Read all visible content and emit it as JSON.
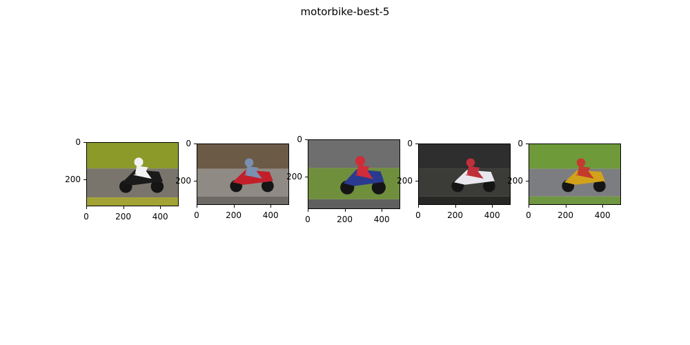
{
  "figure": {
    "title": "motorbike-best-5"
  },
  "panels": [
    {
      "image": "rider-black-white-sportbike-on-track",
      "x_ticks": [
        "0",
        "200",
        "400"
      ],
      "y_ticks": [
        "0",
        "200"
      ],
      "colors": {
        "top": "#8c9a2a",
        "mid": "#7a756c",
        "bottom": "#a3a235",
        "bike": "#1a1a1a",
        "accent": "#f2f2f2"
      }
    },
    {
      "image": "rider-red-sportbike-motion-blur",
      "x_ticks": [
        "0",
        "200",
        "400"
      ],
      "y_ticks": [
        "0",
        "200"
      ],
      "colors": {
        "top": "#6b5a46",
        "mid": "#8f8a84",
        "bottom": "#6d6a66",
        "bike": "#c21f2a",
        "accent": "#7b8fb0"
      }
    },
    {
      "image": "rider-blue-red-sportbike-leaning",
      "x_ticks": [
        "0",
        "200",
        "400"
      ],
      "y_ticks": [
        "0",
        "200"
      ],
      "colors": {
        "top": "#6e6e6e",
        "mid": "#6f8f3c",
        "bottom": "#5f5f5f",
        "bike": "#2a3b8f",
        "accent": "#d12c38"
      }
    },
    {
      "image": "parked-white-red-sportbike-dark",
      "x_ticks": [
        "0",
        "200",
        "400"
      ],
      "y_ticks": [
        "0",
        "200"
      ],
      "colors": {
        "top": "#2e2e2e",
        "mid": "#3b3b38",
        "bottom": "#272725",
        "bike": "#e8e8ee",
        "accent": "#c0303a"
      }
    },
    {
      "image": "rider-yellow-sportbike-on-track",
      "x_ticks": [
        "0",
        "200",
        "400"
      ],
      "y_ticks": [
        "0",
        "200"
      ],
      "colors": {
        "top": "#6e9a3a",
        "mid": "#7c7d80",
        "bottom": "#6f9640",
        "bike": "#d1a21a",
        "accent": "#c43a2e"
      }
    }
  ]
}
